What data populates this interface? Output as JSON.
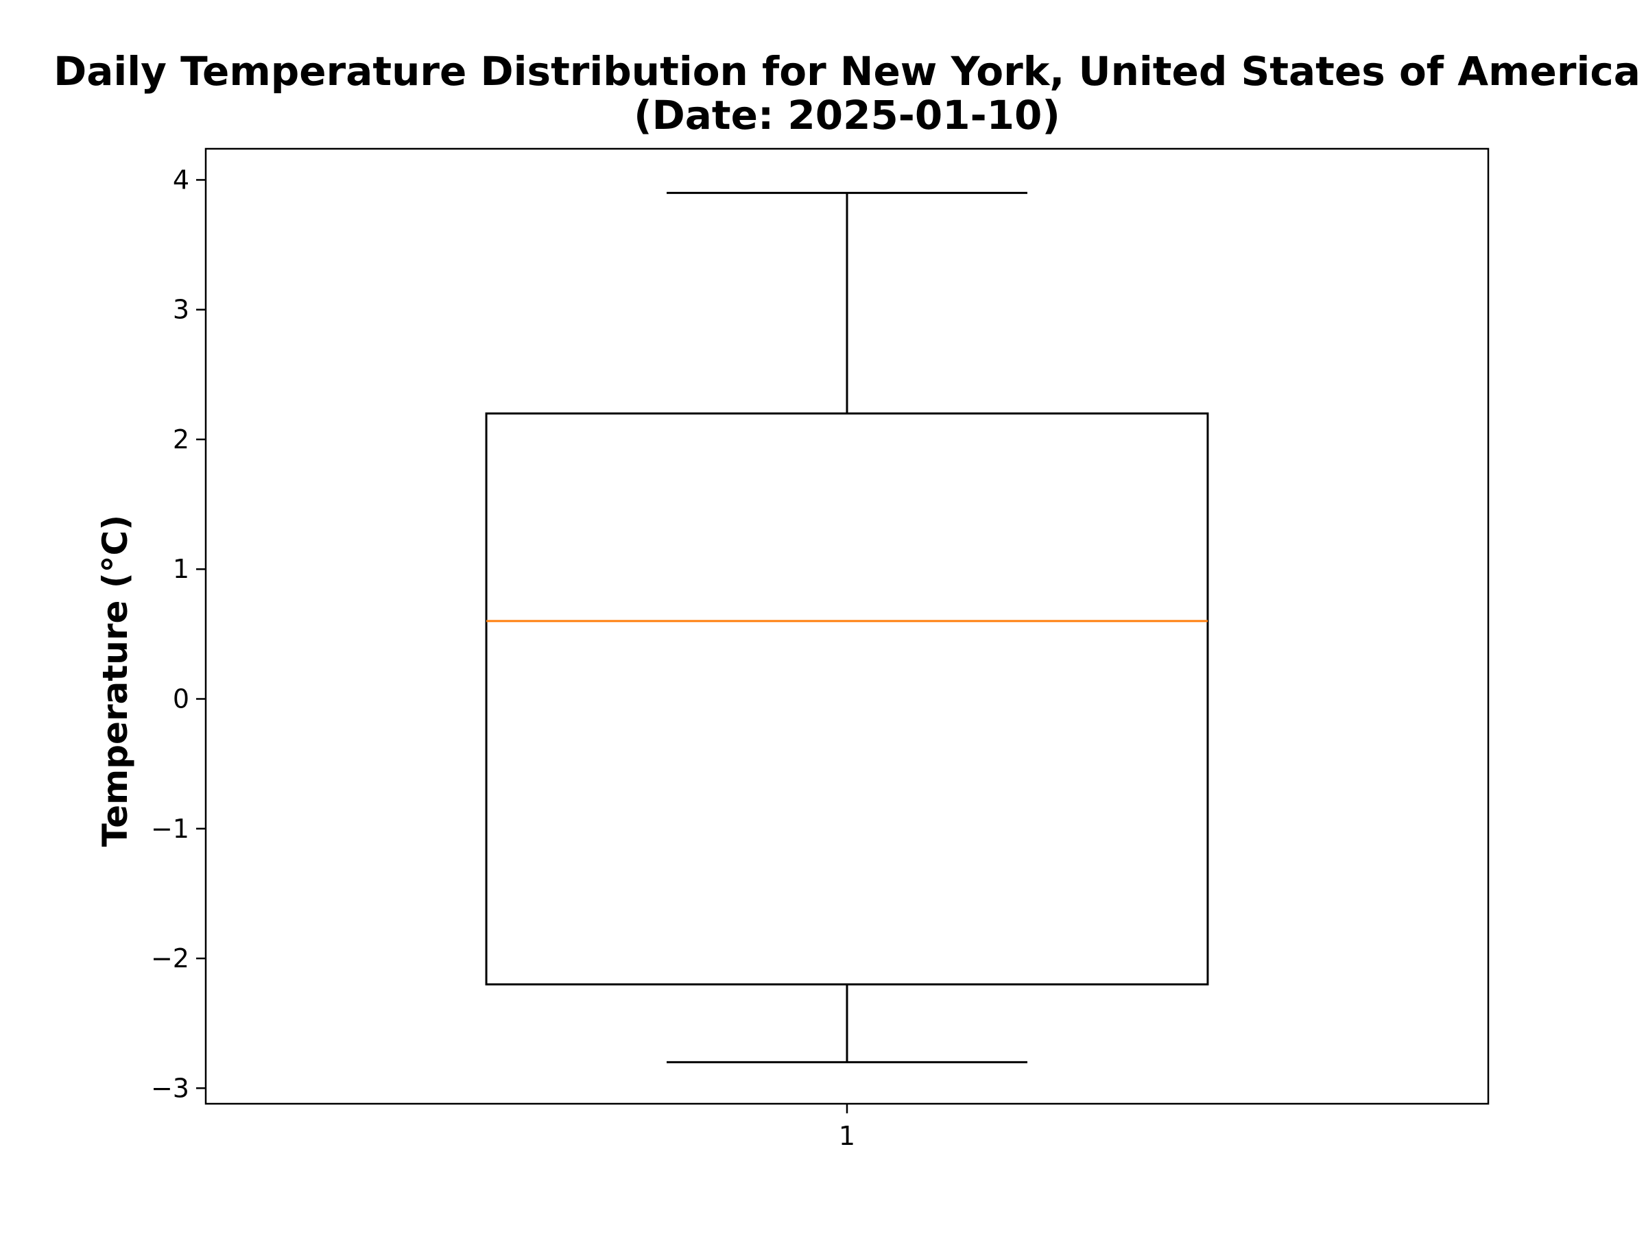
{
  "chart_data": {
    "type": "box",
    "title": "Daily Temperature Distribution for New York, United States of America",
    "subtitle": "(Date: 2025-01-10)",
    "xlabel": "",
    "ylabel": "Temperature (°C)",
    "categories": [
      "1"
    ],
    "yticks": [
      -3,
      -2,
      -1,
      0,
      1,
      2,
      3,
      4
    ],
    "ytick_labels": [
      "−3",
      "−2",
      "−1",
      "0",
      "1",
      "2",
      "3",
      "4"
    ],
    "ylim": [
      -3.12,
      4.24
    ],
    "grid": false,
    "series": [
      {
        "whisker_low": -2.8,
        "q1": -2.2,
        "median": 0.6,
        "q3": 2.2,
        "whisker_high": 3.9
      }
    ],
    "colors": {
      "box": "#000000",
      "median": "#ff7f0e",
      "background": "#ffffff"
    }
  }
}
